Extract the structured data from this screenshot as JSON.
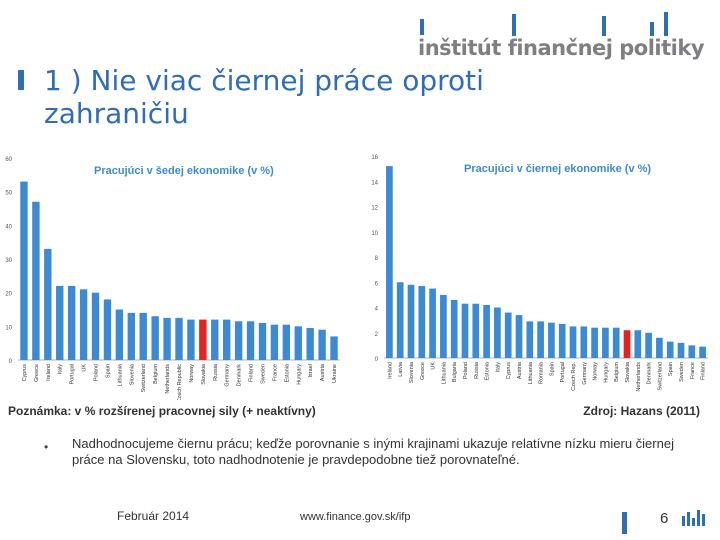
{
  "header": {
    "logo_text": "inštitút finančnej politiky",
    "title": "1 )  Nie viac čiernej práce oproti zahraničiu"
  },
  "chart_data": [
    {
      "type": "bar",
      "title": "Pracujúci v šedej ekonomike (v %)",
      "categories": [
        "Cyprus",
        "Greece",
        "Ireland",
        "Italy",
        "Portugal",
        "UK",
        "Poland",
        "Spain",
        "Lithuania",
        "Slovenia",
        "Switzerland",
        "Belgium",
        "Netherlands",
        "Czech Republic",
        "Norway",
        "Slovakia",
        "Russia",
        "Germany",
        "Denmark",
        "Finland",
        "Sweden",
        "France",
        "Estonia",
        "Hungary",
        "Israel",
        "Austria",
        "Ukraine"
      ],
      "values": [
        53,
        47,
        33,
        22,
        22,
        21,
        20,
        18,
        15,
        14,
        14,
        13,
        12.5,
        12.5,
        12,
        12,
        12,
        12,
        11.5,
        11.5,
        11,
        10.5,
        10.5,
        10,
        9.5,
        9,
        7
      ],
      "highlight": "Slovakia",
      "ylim": [
        0,
        60
      ],
      "yticks": [
        0,
        10,
        20,
        30,
        40,
        50,
        60
      ],
      "xlabel": "",
      "ylabel": ""
    },
    {
      "type": "bar",
      "title": "Pracujúci v čiernej ekonomike (v %)",
      "categories": [
        "Ireland",
        "Latvia",
        "Slovenia",
        "Greece",
        "UK",
        "Lithuania",
        "Bulgaria",
        "Poland",
        "Russia",
        "Estonia",
        "Italy",
        "Cyprus",
        "Austria",
        "Lithuania",
        "Romania",
        "Spain",
        "Portugal",
        "Czech Rep.",
        "Germany",
        "Norway",
        "Hungary",
        "Belgium",
        "Slovakia",
        "Netherlands",
        "Denmark",
        "Switzerland",
        "Spain",
        "Sweden",
        "France",
        "Finland"
      ],
      "values": [
        15.2,
        6.0,
        5.8,
        5.7,
        5.5,
        5.0,
        4.6,
        4.3,
        4.3,
        4.2,
        4.0,
        3.6,
        3.4,
        2.9,
        2.9,
        2.8,
        2.7,
        2.5,
        2.5,
        2.4,
        2.4,
        2.4,
        2.2,
        2.2,
        2.0,
        1.6,
        1.3,
        1.2,
        1.0,
        0.9
      ],
      "highlight_index": 22,
      "ylim": [
        0,
        16
      ],
      "yticks": [
        0,
        2,
        4,
        6,
        8,
        10,
        12,
        14,
        16
      ],
      "xlabel": "",
      "ylabel": ""
    }
  ],
  "notes": {
    "left": "Poznámka: v % rozšírenej pracovnej sily (+ neaktívny)",
    "right": "Zdroj: Hazans (2011)"
  },
  "bullet": "Nadhodnocujeme čiernu prácu; keďže porovnanie s inými krajinami ukazuje relatívne nízku mieru čiernej práce na Slovensku, toto nadhodnotenie je pravdepodobne tiež porovnateľné.",
  "footer": {
    "date": "Február 2014",
    "url": "www.finance.gov.sk/ifp",
    "page": "6"
  },
  "colors": {
    "bar": "#3d8ad3",
    "highlight": "#e02424",
    "title": "#2f6db5",
    "chart_title": "#3d8ad3"
  }
}
